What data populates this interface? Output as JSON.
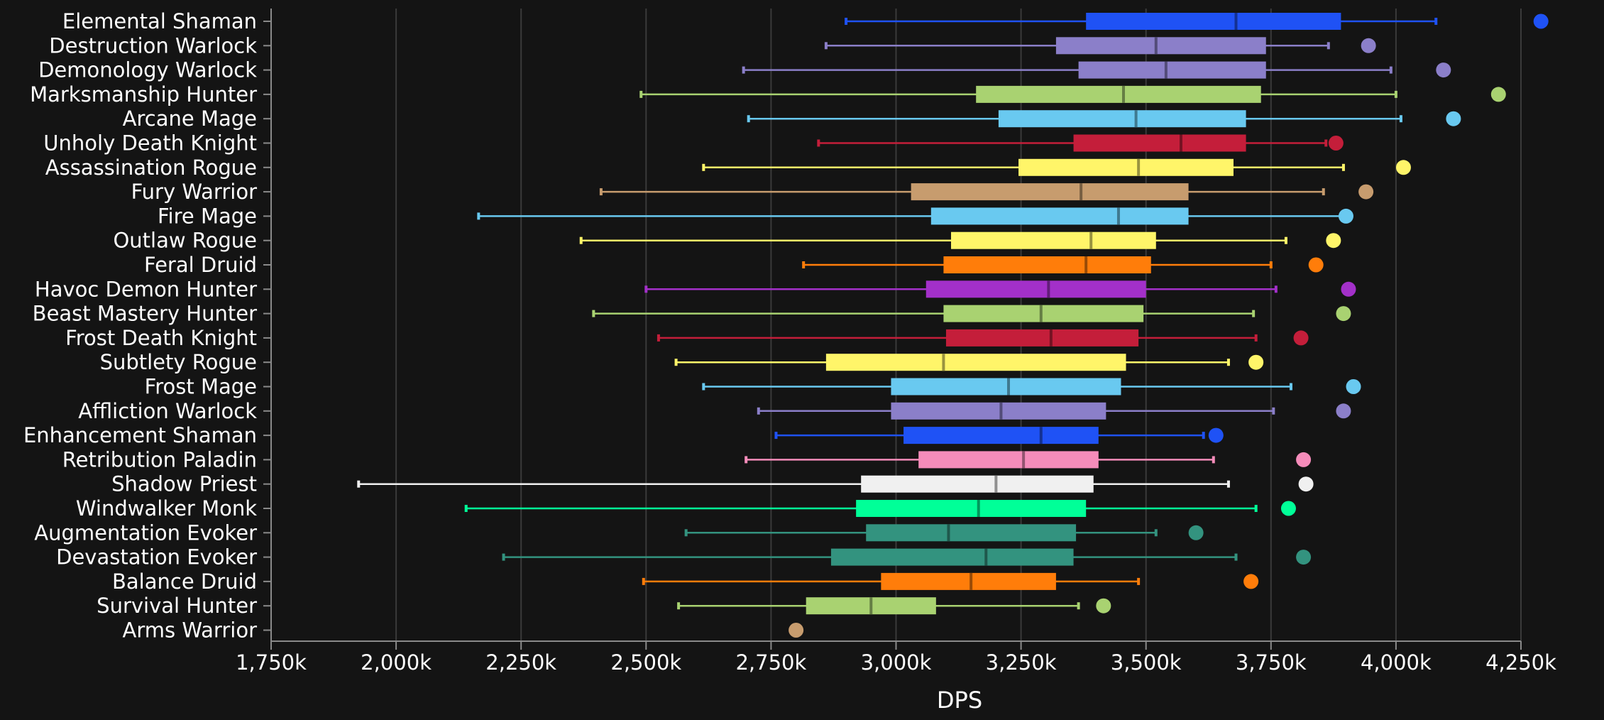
{
  "chart_data": {
    "type": "box",
    "orientation": "horizontal",
    "title": "",
    "xlabel": "DPS",
    "ylabel": "",
    "xlim": [
      1750,
      4300
    ],
    "x_ticks": [
      1750,
      2000,
      2250,
      2500,
      2750,
      3000,
      3250,
      3500,
      3750,
      4000,
      4250
    ],
    "x_tick_labels": [
      "1,750k",
      "2,000k",
      "2,250k",
      "2,500k",
      "2,750k",
      "3,000k",
      "3,250k",
      "3,500k",
      "3,750k",
      "4,000k",
      "4,250k"
    ],
    "grid": true,
    "units": "thousands",
    "series": [
      {
        "name": "Elemental Shaman",
        "color": "#1f52f5",
        "min": 2900,
        "q1": 3380,
        "median": 3680,
        "q3": 3890,
        "max": 4080,
        "outlier": 4290
      },
      {
        "name": "Destruction Warlock",
        "color": "#8b7fc9",
        "min": 2860,
        "q1": 3320,
        "median": 3520,
        "q3": 3740,
        "max": 3865,
        "outlier": 3945
      },
      {
        "name": "Demonology Warlock",
        "color": "#8b7fc9",
        "min": 2695,
        "q1": 3365,
        "median": 3540,
        "q3": 3740,
        "max": 3990,
        "outlier": 4095
      },
      {
        "name": "Marksmanship Hunter",
        "color": "#a9d271",
        "min": 2490,
        "q1": 3160,
        "median": 3455,
        "q3": 3730,
        "max": 4000,
        "outlier": 4205
      },
      {
        "name": "Arcane Mage",
        "color": "#69c9f0",
        "min": 2705,
        "q1": 3205,
        "median": 3480,
        "q3": 3700,
        "max": 4010,
        "outlier": 4115
      },
      {
        "name": "Unholy Death Knight",
        "color": "#c41e3a",
        "min": 2845,
        "q1": 3355,
        "median": 3570,
        "q3": 3700,
        "max": 3860,
        "outlier": 3880
      },
      {
        "name": "Assassination Rogue",
        "color": "#fff569",
        "min": 2615,
        "q1": 3245,
        "median": 3485,
        "q3": 3675,
        "max": 3895,
        "outlier": 4015
      },
      {
        "name": "Fury Warrior",
        "color": "#c79c6e",
        "min": 2410,
        "q1": 3030,
        "median": 3370,
        "q3": 3585,
        "max": 3855,
        "outlier": 3940
      },
      {
        "name": "Fire Mage",
        "color": "#69c9f0",
        "min": 2165,
        "q1": 3070,
        "median": 3445,
        "q3": 3585,
        "max": 3890,
        "outlier": 3900
      },
      {
        "name": "Outlaw Rogue",
        "color": "#fff569",
        "min": 2370,
        "q1": 3110,
        "median": 3390,
        "q3": 3520,
        "max": 3780,
        "outlier": 3875
      },
      {
        "name": "Feral Druid",
        "color": "#ff7d0a",
        "min": 2815,
        "q1": 3095,
        "median": 3380,
        "q3": 3510,
        "max": 3750,
        "outlier": 3840
      },
      {
        "name": "Havoc Demon Hunter",
        "color": "#a330c9",
        "min": 2500,
        "q1": 3060,
        "median": 3305,
        "q3": 3500,
        "max": 3760,
        "outlier": 3905
      },
      {
        "name": "Beast Mastery Hunter",
        "color": "#a9d271",
        "min": 2395,
        "q1": 3095,
        "median": 3290,
        "q3": 3495,
        "max": 3715,
        "outlier": 3895
      },
      {
        "name": "Frost Death Knight",
        "color": "#c41e3a",
        "min": 2525,
        "q1": 3100,
        "median": 3310,
        "q3": 3485,
        "max": 3720,
        "outlier": 3810
      },
      {
        "name": "Subtlety Rogue",
        "color": "#fff569",
        "min": 2560,
        "q1": 2860,
        "median": 3095,
        "q3": 3460,
        "max": 3665,
        "outlier": 3720
      },
      {
        "name": "Frost Mage",
        "color": "#69c9f0",
        "min": 2615,
        "q1": 2990,
        "median": 3225,
        "q3": 3450,
        "max": 3790,
        "outlier": 3915
      },
      {
        "name": "Affliction Warlock",
        "color": "#8b7fc9",
        "min": 2725,
        "q1": 2990,
        "median": 3210,
        "q3": 3420,
        "max": 3755,
        "outlier": 3895
      },
      {
        "name": "Enhancement Shaman",
        "color": "#1f52f5",
        "min": 2760,
        "q1": 3015,
        "median": 3290,
        "q3": 3405,
        "max": 3615,
        "outlier": 3640
      },
      {
        "name": "Retribution Paladin",
        "color": "#f58cba",
        "min": 2700,
        "q1": 3045,
        "median": 3255,
        "q3": 3405,
        "max": 3635,
        "outlier": 3815
      },
      {
        "name": "Shadow Priest",
        "color": "#f0f0f0",
        "min": 1925,
        "q1": 2930,
        "median": 3200,
        "q3": 3395,
        "max": 3665,
        "outlier": 3820
      },
      {
        "name": "Windwalker Monk",
        "color": "#00ff98",
        "min": 2140,
        "q1": 2920,
        "median": 3165,
        "q3": 3380,
        "max": 3720,
        "outlier": 3785
      },
      {
        "name": "Augmentation Evoker",
        "color": "#33937f",
        "min": 2580,
        "q1": 2940,
        "median": 3105,
        "q3": 3360,
        "max": 3520,
        "outlier": 3600
      },
      {
        "name": "Devastation Evoker",
        "color": "#33937f",
        "min": 2215,
        "q1": 2870,
        "median": 3180,
        "q3": 3355,
        "max": 3680,
        "outlier": 3815
      },
      {
        "name": "Balance Druid",
        "color": "#ff7d0a",
        "min": 2495,
        "q1": 2970,
        "median": 3150,
        "q3": 3320,
        "max": 3485,
        "outlier": 3710
      },
      {
        "name": "Survival Hunter",
        "color": "#a9d271",
        "min": 2565,
        "q1": 2820,
        "median": 2950,
        "q3": 3080,
        "max": 3365,
        "outlier": 3415
      },
      {
        "name": "Arms Warrior",
        "color": "#c79c6e",
        "min": null,
        "q1": null,
        "median": null,
        "q3": null,
        "max": null,
        "outlier": 2800
      }
    ]
  }
}
